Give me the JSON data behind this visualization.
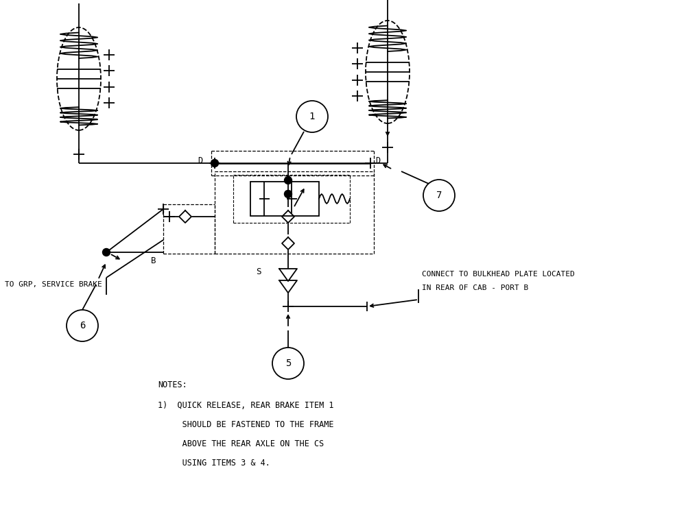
{
  "bg_color": "#ffffff",
  "line_color": "#000000",
  "font_family": "monospace",
  "notes_text": [
    "NOTES:",
    "1)  QUICK RELEASE, REAR BRAKE ITEM 1",
    "     SHOULD BE FASTENED TO THE FRAME",
    "     ABOVE THE REAR AXLE ON THE CS",
    "     USING ITEMS 3 & 4."
  ],
  "connect_text": [
    "CONNECT TO BULKHEAD PLATE LOCATED",
    "IN REAR OF CAB - PORT B"
  ],
  "service_brake_text": "TO GRP, SERVICE BRAKE",
  "item_labels": [
    "6",
    "7",
    "1",
    "5"
  ],
  "D_label": "D",
  "B_label": "B",
  "S_label": "S"
}
